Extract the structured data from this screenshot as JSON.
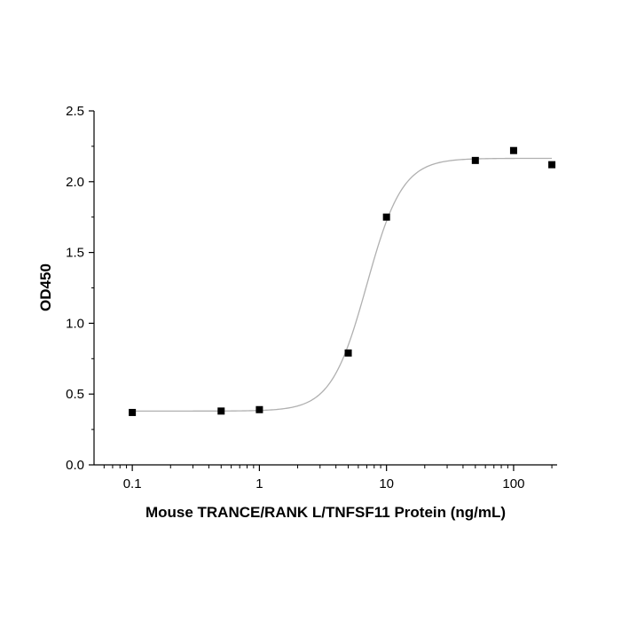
{
  "chart_data": {
    "type": "scatter",
    "title": "",
    "xlabel": "Mouse TRANCE/RANK L/TNFSF11 Protein (ng/mL)",
    "ylabel": "OD450",
    "xscale": "log",
    "xlim": [
      0.05,
      220
    ],
    "ylim": [
      0,
      2.5
    ],
    "x_ticks": [
      0.1,
      1,
      10,
      100
    ],
    "x_tick_labels": [
      "0.1",
      "1",
      "10",
      "100"
    ],
    "y_ticks": [
      0,
      0.5,
      1,
      1.5,
      2,
      2.5
    ],
    "y_tick_labels": [
      "0.0",
      "0.5",
      "1.0",
      "1.5",
      "2.0",
      "2.5"
    ],
    "grid": false,
    "legend": "none",
    "series": [
      {
        "marker": "square",
        "color": "#000000",
        "x": [
          0.1,
          0.5,
          1,
          5,
          10,
          50,
          100,
          200
        ],
        "y": [
          0.37,
          0.38,
          0.39,
          0.79,
          1.75,
          2.15,
          2.22,
          2.12
        ]
      }
    ],
    "fit_curve": {
      "model": "4PL",
      "color": "#b0b0b0",
      "bottom": 0.38,
      "top": 2.165,
      "ec50": 7.0,
      "hill": 3.1
    }
  }
}
